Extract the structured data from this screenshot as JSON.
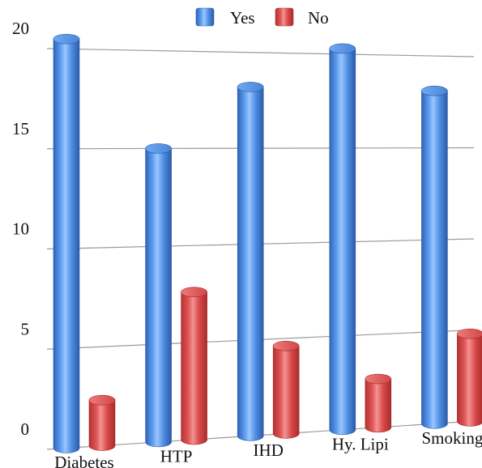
{
  "chart_data": {
    "type": "bar",
    "categories": [
      "Diabetes",
      "HTP",
      "IHD",
      "Hy. Lipi",
      "Smoking"
    ],
    "series": [
      {
        "name": "Yes",
        "values": [
          20.5,
          15.0,
          18.2,
          20.3,
          18.1
        ],
        "color": "#4f8fe0"
      },
      {
        "name": "No",
        "values": [
          2.3,
          7.6,
          4.6,
          2.6,
          4.8
        ],
        "color": "#e05050"
      }
    ],
    "y_ticks": [
      "0",
      "5",
      "10",
      "15",
      "20"
    ],
    "ylim": [
      0,
      20
    ],
    "grid": true,
    "legend": "top-center",
    "style": "3d-cylinder"
  }
}
